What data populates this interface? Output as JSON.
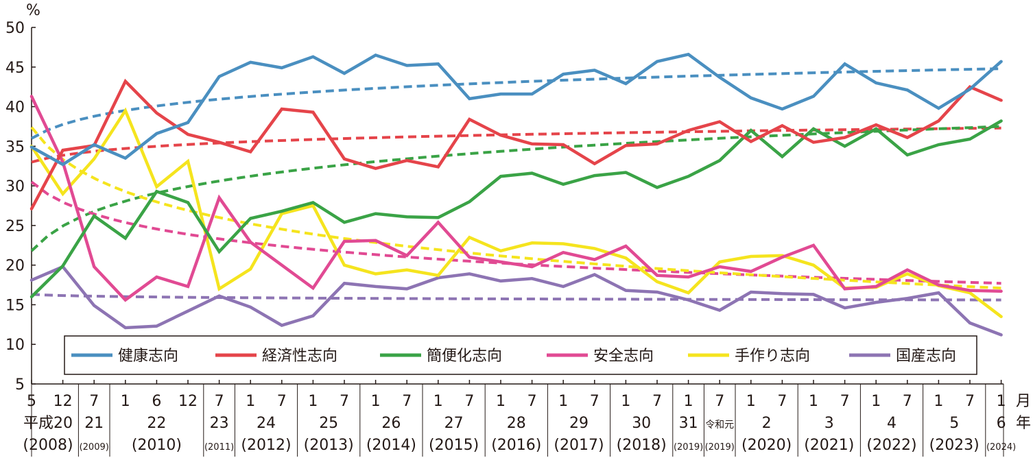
{
  "chart_data": {
    "type": "line",
    "yunit": "%",
    "ylim": [
      5,
      50
    ],
    "yticks": [
      5,
      10,
      15,
      20,
      25,
      30,
      35,
      40,
      45,
      50
    ],
    "x": [
      "平成20年5月",
      "平成20年12月",
      "平成21年7月",
      "平成22年1月",
      "平成22年6月",
      "平成22年12月",
      "平成23年7月",
      "平成24年1月",
      "平成24年7月",
      "平成25年1月",
      "平成25年7月",
      "平成26年1月",
      "平成26年7月",
      "平成27年1月",
      "平成27年7月",
      "平成28年1月",
      "平成28年7月",
      "平成29年1月",
      "平成29年7月",
      "平成30年1月",
      "平成30年7月",
      "平成31年1月",
      "令和元年7月",
      "令和2年1月",
      "令和2年7月",
      "令和3年1月",
      "令和3年7月",
      "令和4年1月",
      "令和4年7月",
      "令和5年1月",
      "令和5年7月",
      "令和6年1月"
    ],
    "month_labels": [
      "5",
      "12",
      "7",
      "1",
      "6",
      "12",
      "7",
      "1",
      "7",
      "1",
      "7",
      "1",
      "7",
      "1",
      "7",
      "1",
      "7",
      "1",
      "7",
      "1",
      "7",
      "1",
      "7",
      "1",
      "7",
      "1",
      "7",
      "1",
      "7",
      "1",
      "7",
      "1"
    ],
    "month_unit": "月",
    "year_unit": "年",
    "year_groups": [
      {
        "label": "平成20",
        "sub": "(2008)",
        "small": false,
        "start": 0,
        "end": 1
      },
      {
        "label": "21",
        "sub": "(2009)",
        "small": true,
        "start": 2,
        "end": 2
      },
      {
        "label": "22",
        "sub": "(2010)",
        "small": false,
        "start": 3,
        "end": 5
      },
      {
        "label": "23",
        "sub": "(2011)",
        "small": true,
        "start": 6,
        "end": 6
      },
      {
        "label": "24",
        "sub": "(2012)",
        "small": false,
        "start": 7,
        "end": 8
      },
      {
        "label": "25",
        "sub": "(2013)",
        "small": false,
        "start": 9,
        "end": 10
      },
      {
        "label": "26",
        "sub": "(2014)",
        "small": false,
        "start": 11,
        "end": 12
      },
      {
        "label": "27",
        "sub": "(2015)",
        "small": false,
        "start": 13,
        "end": 14
      },
      {
        "label": "28",
        "sub": "(2016)",
        "small": false,
        "start": 15,
        "end": 16
      },
      {
        "label": "29",
        "sub": "(2017)",
        "small": false,
        "start": 17,
        "end": 18
      },
      {
        "label": "30",
        "sub": "(2018)",
        "small": false,
        "start": 19,
        "end": 20
      },
      {
        "label": "31",
        "sub": "(2019)",
        "small": true,
        "start": 21,
        "end": 21
      },
      {
        "label": "令和元",
        "sub": "(2019)",
        "small": true,
        "start": 22,
        "end": 22
      },
      {
        "label": "2",
        "sub": "(2020)",
        "small": false,
        "start": 23,
        "end": 24
      },
      {
        "label": "3",
        "sub": "(2021)",
        "small": false,
        "start": 25,
        "end": 26
      },
      {
        "label": "4",
        "sub": "(2022)",
        "small": false,
        "start": 27,
        "end": 28
      },
      {
        "label": "5",
        "sub": "(2023)",
        "small": false,
        "start": 29,
        "end": 30
      },
      {
        "label": "6",
        "sub": "(2024)",
        "small": true,
        "start": 31,
        "end": 31
      }
    ],
    "series": [
      {
        "name": "健康志向",
        "color": "#4a8fc0",
        "trend": [
          36.0,
          44.8
        ],
        "values": [
          34.9,
          32.7,
          35.2,
          33.5,
          36.6,
          38.0,
          43.8,
          45.6,
          44.9,
          46.3,
          44.2,
          46.5,
          45.2,
          45.4,
          41.0,
          41.6,
          41.6,
          44.1,
          44.6,
          42.9,
          45.7,
          46.6,
          43.7,
          41.1,
          39.7,
          41.3,
          45.4,
          43.0,
          42.1,
          39.8,
          42.2,
          45.7
        ]
      },
      {
        "name": "経済性志向",
        "color": "#e5444a",
        "trend": [
          33.0,
          37.3
        ],
        "values": [
          27.1,
          34.5,
          35.1,
          43.2,
          39.2,
          36.5,
          35.5,
          34.3,
          39.7,
          39.3,
          33.4,
          32.2,
          33.2,
          32.4,
          38.4,
          36.4,
          35.3,
          35.2,
          32.8,
          35.1,
          35.3,
          37.0,
          38.1,
          35.6,
          37.6,
          35.5,
          36.1,
          37.7,
          36.1,
          38.2,
          42.5,
          40.8
        ]
      },
      {
        "name": "簡便化志向",
        "color": "#3aa346",
        "trend": [
          21.8,
          37.5
        ],
        "values": [
          16.0,
          19.9,
          26.2,
          23.4,
          29.3,
          27.9,
          21.7,
          25.9,
          26.8,
          27.9,
          25.4,
          26.5,
          26.1,
          26.0,
          28.0,
          31.2,
          31.6,
          30.2,
          31.3,
          31.7,
          29.8,
          31.2,
          33.2,
          37.0,
          33.7,
          37.2,
          35.0,
          37.2,
          33.9,
          35.2,
          35.9,
          38.2
        ]
      },
      {
        "name": "安全志向",
        "color": "#e14a93",
        "trend": [
          30.5,
          17.7
        ],
        "values": [
          41.3,
          33.0,
          19.8,
          15.6,
          18.5,
          17.3,
          28.5,
          22.9,
          20.0,
          17.1,
          23.0,
          23.1,
          21.2,
          25.4,
          21.0,
          20.4,
          19.8,
          21.6,
          20.7,
          22.4,
          18.7,
          18.5,
          19.8,
          19.2,
          21.0,
          22.5,
          17.0,
          17.3,
          19.4,
          17.5,
          16.8,
          16.7
        ]
      },
      {
        "name": "手作り志向",
        "color": "#f5e41e",
        "trend": [
          37.4,
          17.1
        ],
        "values": [
          35.0,
          29.0,
          33.4,
          39.5,
          29.9,
          33.1,
          17.0,
          19.5,
          26.5,
          27.5,
          20.0,
          18.9,
          19.4,
          18.7,
          23.5,
          21.8,
          22.8,
          22.7,
          22.1,
          20.9,
          17.9,
          16.5,
          20.4,
          21.1,
          21.2,
          20.0,
          17.1,
          17.2,
          18.9,
          17.4,
          16.5,
          13.5
        ]
      },
      {
        "name": "国産志向",
        "color": "#8d74b3",
        "trend": [
          16.3,
          15.6
        ],
        "values": [
          18.1,
          19.8,
          14.9,
          12.1,
          12.3,
          14.2,
          16.1,
          14.7,
          12.4,
          13.6,
          17.7,
          17.3,
          17.0,
          18.4,
          18.9,
          18.0,
          18.3,
          17.3,
          18.8,
          16.8,
          16.6,
          15.6,
          14.3,
          16.6,
          16.4,
          16.3,
          14.6,
          15.3,
          15.8,
          16.5,
          12.7,
          11.2
        ]
      }
    ]
  }
}
